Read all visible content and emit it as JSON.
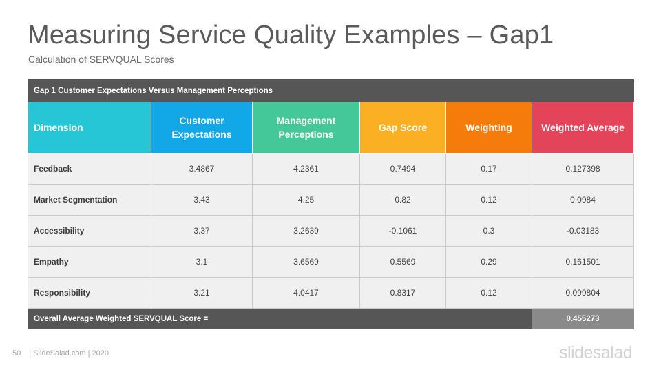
{
  "slide": {
    "title": "Measuring Service Quality Examples – Gap1",
    "subtitle": "Calculation of SERVQUAL Scores"
  },
  "table": {
    "banner": "Gap 1 Customer Expectations Versus Management  Perceptions",
    "headers": {
      "dimension": "Dimension",
      "customer_line1": "Customer",
      "customer_line2": "Expectations",
      "management_line1": "Management",
      "management_line2": "Perceptions",
      "gap_score": "Gap Score",
      "weighting": "Weighting",
      "weighted_average": "Weighted Average"
    },
    "header_colors": {
      "dimension": "#26c6d6",
      "customer": "#12a7e6",
      "management": "#44c89a",
      "gap_score": "#fbb024",
      "weighting": "#f57c0a",
      "weighted_average": "#e4445a"
    },
    "rows": [
      {
        "dimension": "Feedback",
        "customer": "3.4867",
        "management": "4.2361",
        "gap": "0.7494",
        "weighting": "0.17",
        "weighted": "0.127398"
      },
      {
        "dimension": "Market Segmentation",
        "customer": "3.43",
        "management": "4.25",
        "gap": "0.82",
        "weighting": "0.12",
        "weighted": "0.0984"
      },
      {
        "dimension": "Accessibility",
        "customer": "3.37",
        "management": "3.2639",
        "gap": "-0.1061",
        "weighting": "0.3",
        "weighted": "-0.03183"
      },
      {
        "dimension": "Empathy",
        "customer": "3.1",
        "management": "3.6569",
        "gap": "0.5569",
        "weighting": "0.29",
        "weighted": "0.161501"
      },
      {
        "dimension": "Responsibility",
        "customer": "3.21",
        "management": "4.0417",
        "gap": "0.8317",
        "weighting": "0.12",
        "weighted": "0.099804"
      }
    ],
    "footer_label": "Overall Average Weighted  SERVQUAL  Score =",
    "footer_score": "0.455273"
  },
  "footer": {
    "page_number": "50",
    "credit": "| SlideSalad.com | 2020",
    "logo": "slidesalad"
  }
}
